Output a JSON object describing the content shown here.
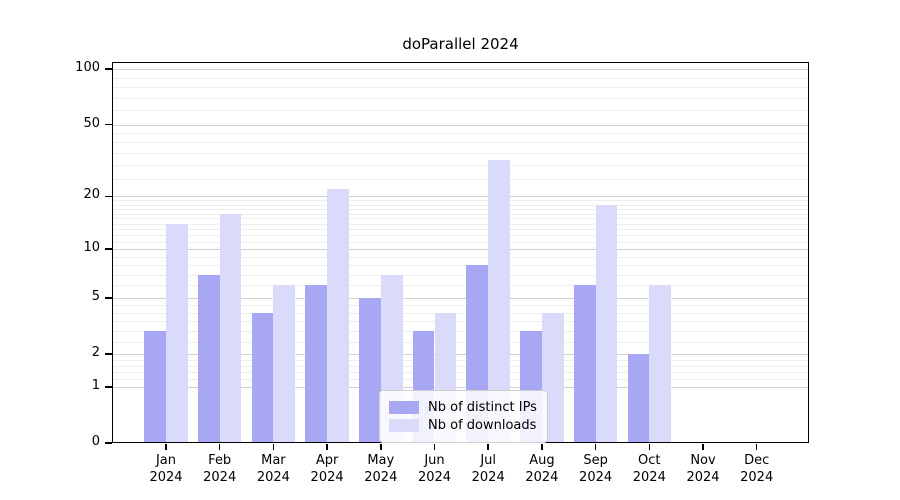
{
  "chart_data": {
    "type": "bar",
    "title": "doParallel 2024",
    "year": "2024",
    "categories": [
      "Jan",
      "Feb",
      "Mar",
      "Apr",
      "May",
      "Jun",
      "Jul",
      "Aug",
      "Sep",
      "Oct",
      "Nov",
      "Dec"
    ],
    "series": [
      {
        "name": "Nb of distinct IPs",
        "color": "#a7a7f3",
        "values": [
          3,
          7,
          4,
          6,
          5,
          3,
          8,
          3,
          6,
          2,
          0,
          0
        ]
      },
      {
        "name": "Nb of downloads",
        "color": "#dadafa",
        "values": [
          14,
          16,
          6,
          22,
          7,
          4,
          32,
          4,
          18,
          6,
          0,
          0
        ]
      }
    ],
    "yscale": "log1p",
    "yticks": [
      0,
      1,
      2,
      5,
      10,
      20,
      50,
      100
    ],
    "minor_gridlines": [
      1.2,
      1.4,
      1.6,
      1.8,
      2.5,
      3,
      3.5,
      4,
      4.5,
      6,
      7,
      8,
      9,
      11,
      12,
      13,
      14,
      15,
      16,
      17,
      18,
      19,
      25,
      30,
      35,
      40,
      45,
      60,
      70,
      80,
      90
    ],
    "ylim": [
      0,
      110
    ],
    "xlabel": "",
    "ylabel": "",
    "grid": "on",
    "legend_position": "bottom-center-inside",
    "colors": {
      "axis": "#000000",
      "major_grid": "#d2d2d2",
      "minor_grid": "#eeeeee"
    }
  }
}
